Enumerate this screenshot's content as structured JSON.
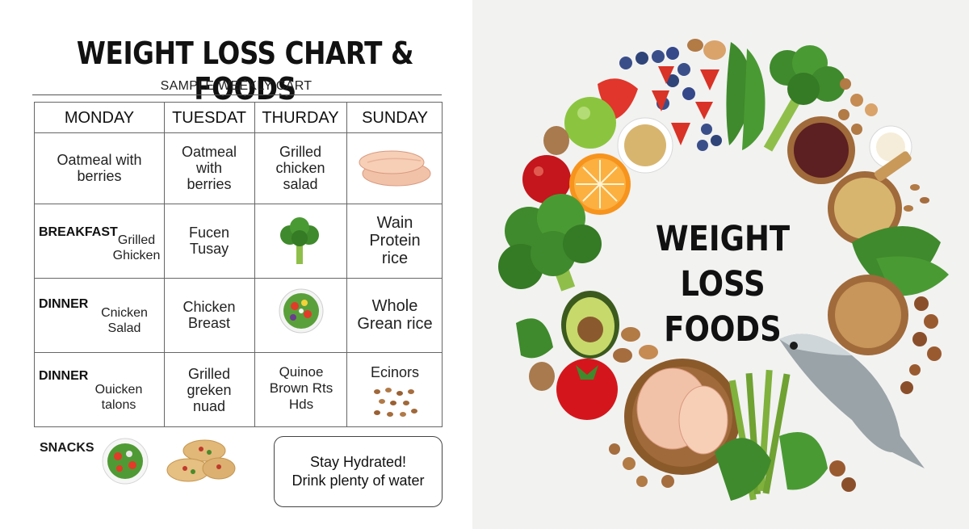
{
  "left_panel": {
    "title": "WEIGHT LOSS CHART & FOODS",
    "subtitle": "SAMPLE WEEKLY CART",
    "table": {
      "headers": [
        "MONDAY",
        "TUESDAT",
        "THURDAY",
        "SUNDAY"
      ],
      "rows": [
        {
          "label": "",
          "cells": [
            "Oatmeal with berries",
            "Oatmeal with berries",
            "Grilled chicken salad",
            ""
          ],
          "image_cell": "chicken-breast-image"
        },
        {
          "label": "BREAKFAST",
          "sub": "Grilled Ghicken",
          "cells": [
            "Fucen Tusay",
            "",
            "Wain Protein rice"
          ],
          "image_cell": "broccoli-image"
        },
        {
          "label": "DINNER",
          "sub": "Cnicken Salad",
          "cells": [
            "Chicken Breast",
            "",
            "Whole Grean rice"
          ],
          "image_cell": "salad-bowl-image"
        },
        {
          "label": "DINNER",
          "sub": "Ouicken talons",
          "cells": [
            "Grilled greken nuad",
            "Quinoe Brown Rts Hds",
            "Ecinors"
          ],
          "image_cell": "nuts-image"
        }
      ]
    },
    "snacks_label": "SNACKS",
    "hydration": {
      "line1": "Stay Hydrated!",
      "line2": "Drink plenty of water"
    }
  },
  "right_panel": {
    "title_line1": "WEIGHT LOSS",
    "title_line2": "FOODS"
  },
  "colors": {
    "left_bg": "#ffffff",
    "right_bg": "#f2f2f1",
    "grid_line": "#666666",
    "text": "#1a1a1a"
  }
}
